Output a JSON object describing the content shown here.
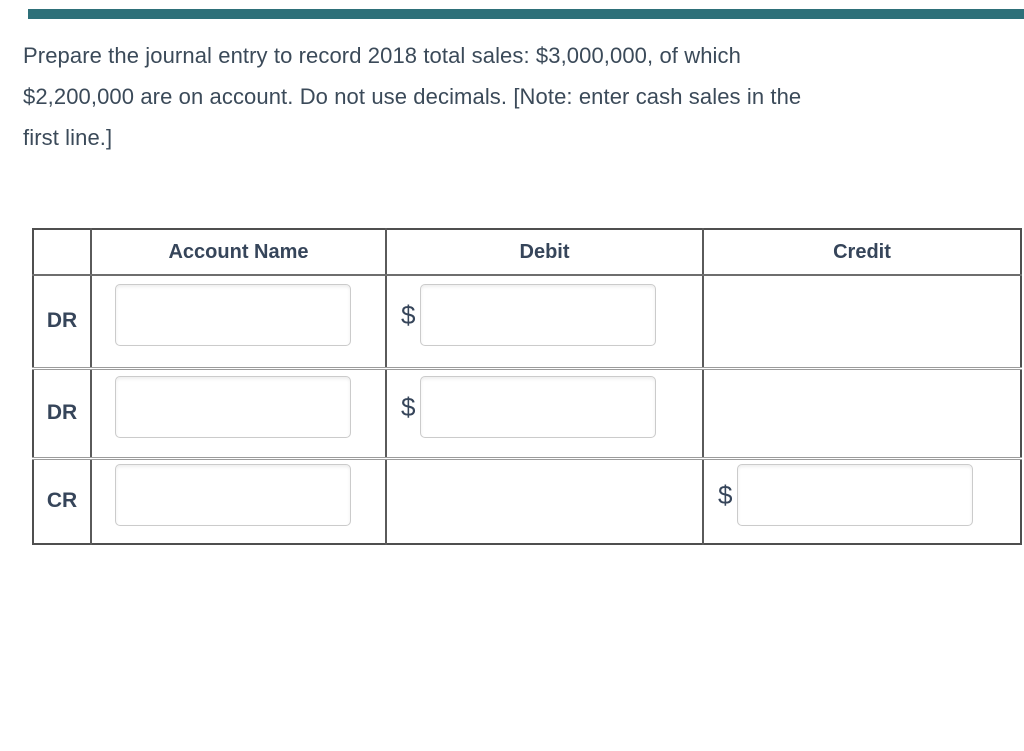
{
  "page": {
    "background_color": "#ffffff",
    "accent_bar_color": "#2e7079",
    "text_color": "#3b4a59"
  },
  "question": {
    "lines": [
      "Prepare the journal entry to record 2018 total sales: $3,000,000, of which",
      "$2,200,000 are on account. Do not use decimals. [Note: enter cash sales in the",
      "first line.]"
    ],
    "full_text": "Prepare the journal entry to record 2018 total sales: $3,000,000, of which $2,200,000 are on account. Do not use decimals. [Note: enter cash sales in the first line.]"
  },
  "journal_table": {
    "headers": {
      "row_label": "",
      "account_name": "Account Name",
      "debit": "Debit",
      "credit": "Credit"
    },
    "currency_symbol": "$",
    "rows": [
      {
        "label": "DR",
        "account_value": "",
        "debit_value": "",
        "credit_value": null
      },
      {
        "label": "DR",
        "account_value": "",
        "debit_value": "",
        "credit_value": null
      },
      {
        "label": "CR",
        "account_value": "",
        "debit_value": null,
        "credit_value": ""
      }
    ],
    "colors": {
      "outer_border": "#4f4f4f",
      "column_border": "#5a5a5a",
      "row_divider": "#9c9c9c",
      "input_border": "#cbcbcb",
      "header_text": "#36455a"
    }
  }
}
